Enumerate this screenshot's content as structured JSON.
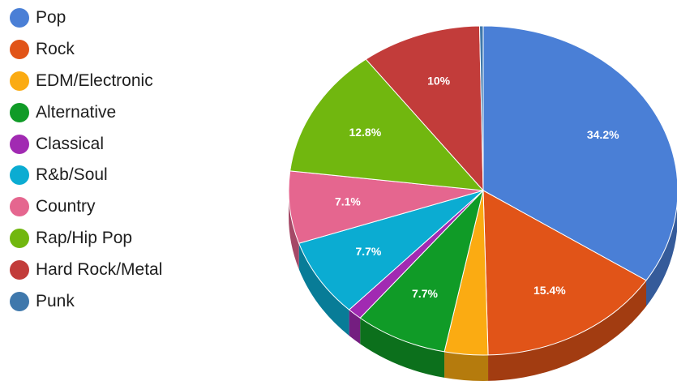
{
  "chart_data": {
    "type": "pie",
    "style": "3d",
    "legend_position": "left",
    "title": "",
    "slices": [
      {
        "name": "Pop",
        "value": 34.2,
        "color": "#4a7fd6"
      },
      {
        "name": "Rock",
        "value": 15.4,
        "color": "#e15418"
      },
      {
        "name": "EDM/Electronic",
        "value": 3.6,
        "color": "#fbab12"
      },
      {
        "name": "Alternative",
        "value": 7.7,
        "color": "#109b27"
      },
      {
        "name": "Classical",
        "value": 1.2,
        "color": "#a12ab2"
      },
      {
        "name": "R&b/Soul",
        "value": 7.7,
        "color": "#0bacd2"
      },
      {
        "name": "Country",
        "value": 7.1,
        "color": "#e5668f"
      },
      {
        "name": "Rap/Hip Pop",
        "value": 12.8,
        "color": "#71b70f"
      },
      {
        "name": "Hard Rock/Metal",
        "value": 10,
        "color": "#c23c3a"
      },
      {
        "name": "Punk",
        "value": 0.3,
        "color": "#3f78ac"
      }
    ],
    "data_labels": [
      "34.2%",
      "15.4%",
      "",
      "7.7%",
      "",
      "7.7%",
      "7.1%",
      "12.8%",
      "10%",
      ""
    ]
  }
}
